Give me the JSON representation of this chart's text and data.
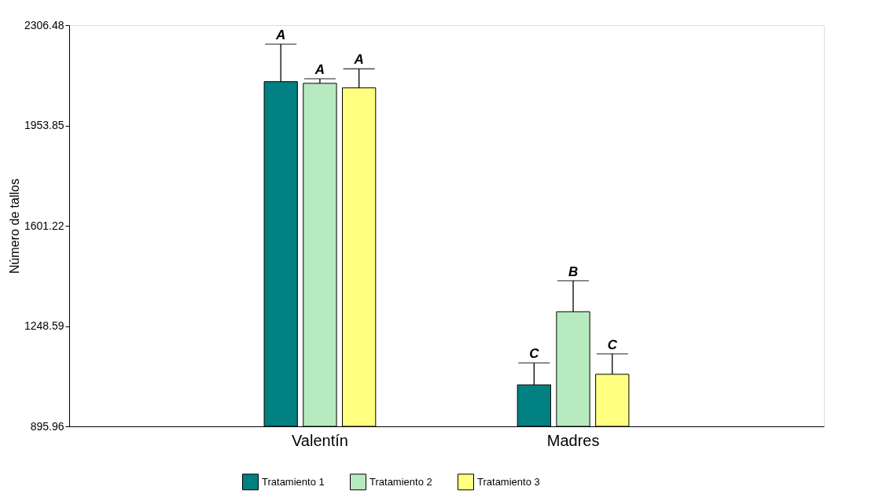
{
  "chart_data": {
    "type": "bar",
    "ylabel": "Número de tallos",
    "categories": [
      "Valentín",
      "Madres"
    ],
    "ylim": [
      895.96,
      2306.48
    ],
    "yticks": [
      895.96,
      1248.59,
      1601.22,
      1953.85,
      2306.48
    ],
    "grid": false,
    "legend": "bottom",
    "series": [
      {
        "name": "Tratamiento 1",
        "color": "#008080",
        "values": [
          2108,
          1042
        ],
        "errors": [
          [
            2108,
            2240
          ],
          [
            1042,
            1119
          ]
        ],
        "value_labels": [
          "A",
          "C"
        ]
      },
      {
        "name": "Tratamiento 2",
        "color": "#b8eac0",
        "values": [
          2102,
          1299
        ],
        "errors": [
          [
            2102,
            2118
          ],
          [
            1299,
            1408
          ]
        ],
        "value_labels": [
          "A",
          "B"
        ]
      },
      {
        "name": "Tratamiento 3",
        "color": "#ffff80",
        "values": [
          2086,
          1079
        ],
        "errors": [
          [
            2086,
            2153
          ],
          [
            1079,
            1151
          ]
        ],
        "value_labels": [
          "A",
          "C"
        ]
      }
    ]
  }
}
